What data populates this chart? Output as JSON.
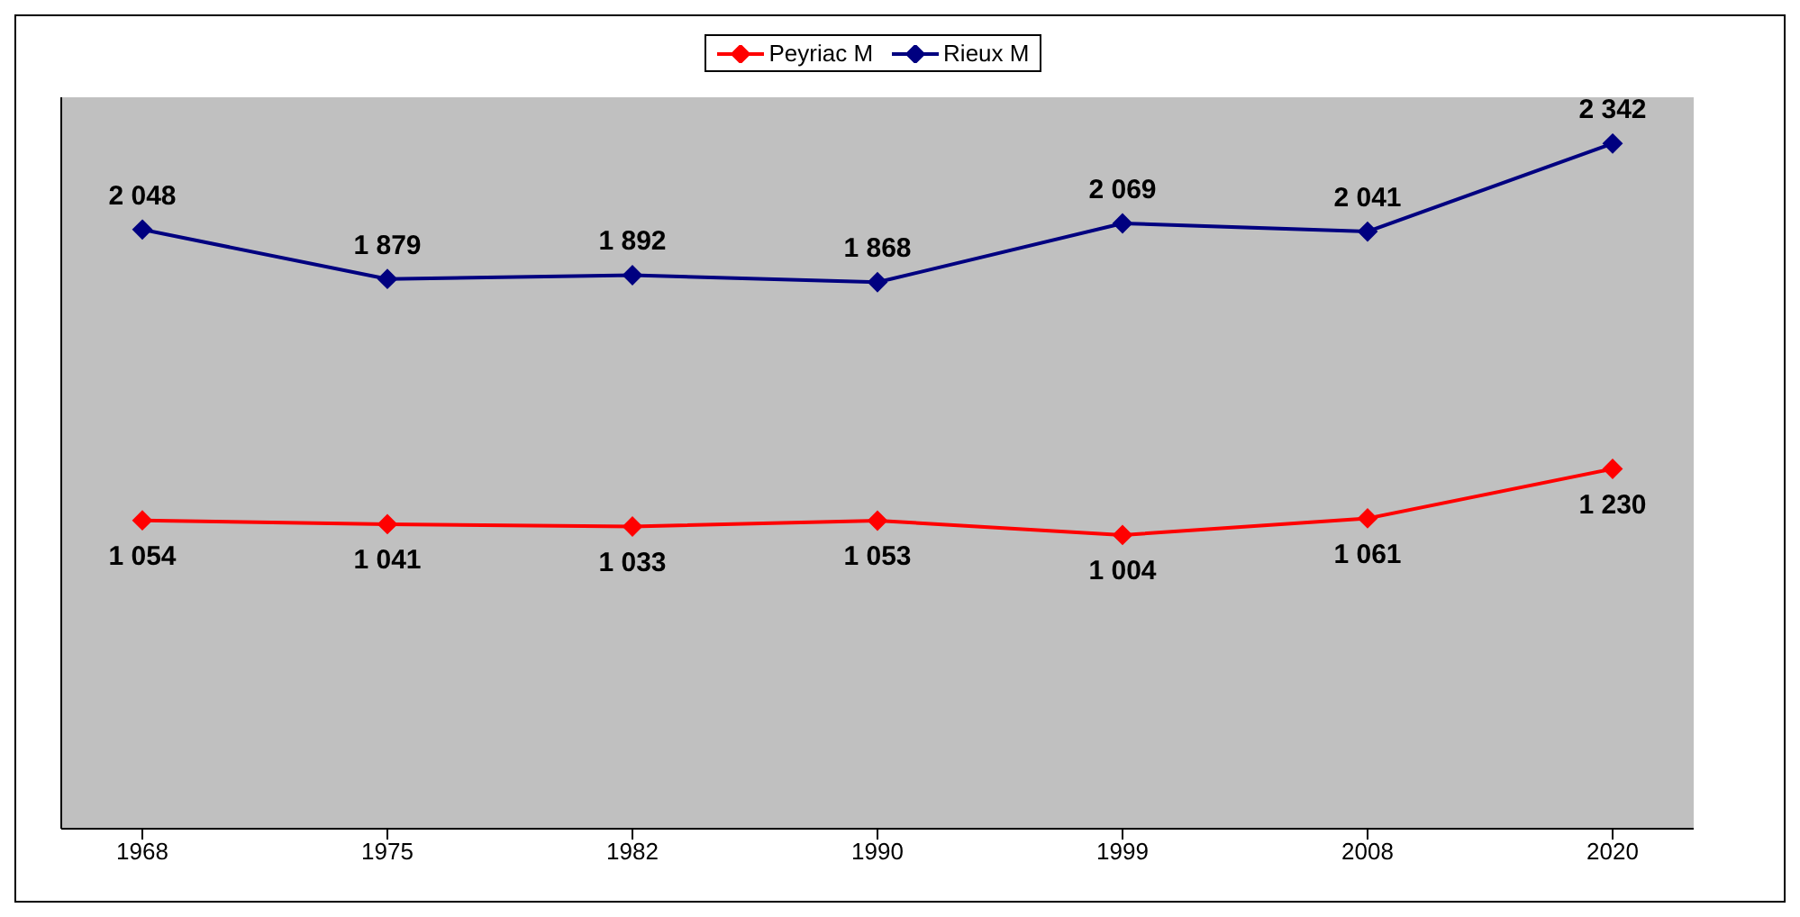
{
  "chart_data": {
    "type": "line",
    "categories": [
      "1968",
      "1975",
      "1982",
      "1990",
      "1999",
      "2008",
      "2020"
    ],
    "series": [
      {
        "name": "Peyriac M",
        "color": "#ff0000",
        "values": [
          1054,
          1041,
          1033,
          1053,
          1004,
          1061,
          1230
        ]
      },
      {
        "name": "Rieux M",
        "color": "#000080",
        "values": [
          2048,
          1879,
          1892,
          1868,
          2069,
          2041,
          2342
        ]
      }
    ],
    "ylim": [
      0,
      2500
    ],
    "tick_labels": "x",
    "legend": "top",
    "marker": "diamond",
    "line_style": "solid",
    "data_labels": true
  }
}
